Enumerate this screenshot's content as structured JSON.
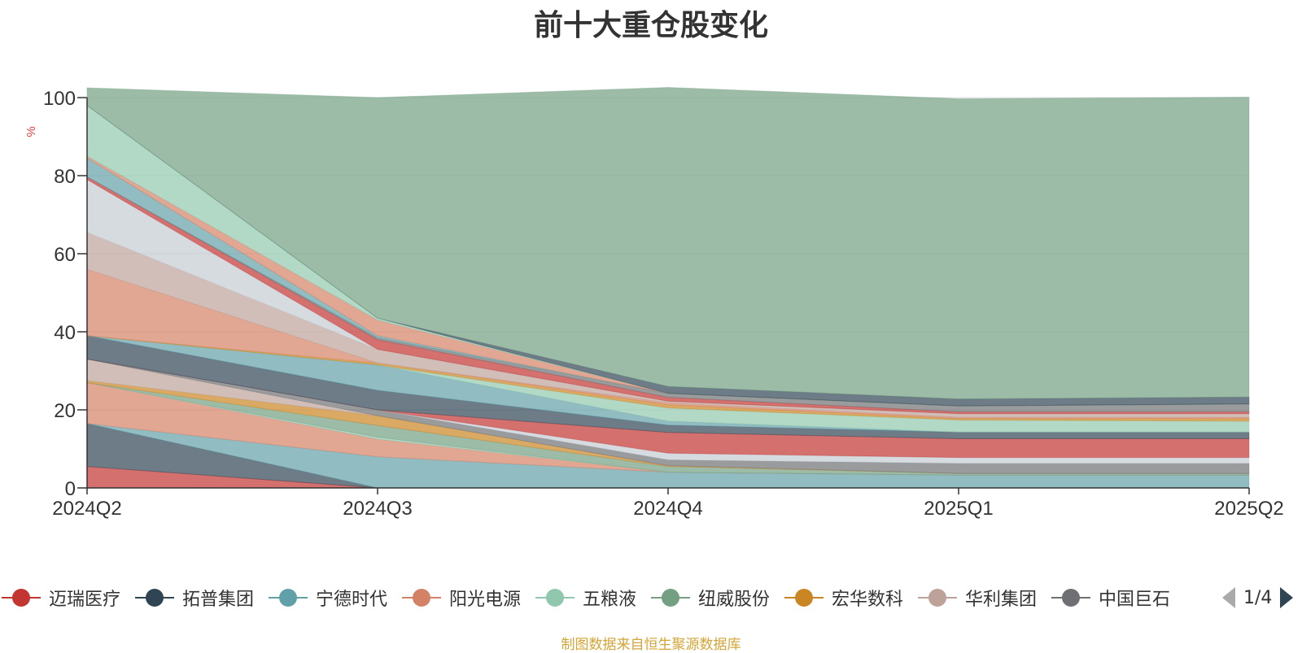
{
  "chart_data": {
    "type": "area",
    "title": "前十大重仓股变化",
    "ylabel": "%",
    "ylim": [
      0,
      100
    ],
    "yticks": [
      0,
      20,
      40,
      60,
      80,
      100
    ],
    "categories": [
      "2024Q2",
      "2024Q3",
      "2024Q4",
      "2025Q1",
      "2025Q2"
    ],
    "grid": true,
    "stacked": true,
    "series": [
      {
        "name": "迈瑞医疗",
        "color": "#c23531",
        "values": [
          5.5,
          0,
          0,
          0,
          0
        ]
      },
      {
        "name": "拓普集团",
        "color": "#2f4554",
        "values": [
          11,
          0,
          0,
          0,
          0
        ]
      },
      {
        "name": "宁德时代",
        "color": "#61a0a8",
        "values": [
          0,
          8,
          4,
          3.3,
          3.3
        ]
      },
      {
        "name": "阳光电源",
        "color": "#d48265",
        "values": [
          10.5,
          4.5,
          0,
          0,
          0
        ]
      },
      {
        "name": "五粮液",
        "color": "#91c7ae",
        "values": [
          0,
          0.5,
          0,
          0,
          0
        ]
      },
      {
        "name": "纽威股份",
        "color": "#749f83",
        "values": [
          0,
          3,
          1.5,
          0.4,
          0.4
        ]
      },
      {
        "name": "宏华数科",
        "color": "#ca8622",
        "values": [
          0.5,
          2.5,
          0.2,
          0,
          0
        ]
      },
      {
        "name": "华利集团",
        "color": "#bda29a",
        "values": [
          5.5,
          0,
          0,
          0,
          0
        ]
      },
      {
        "name": "中国巨石",
        "color": "#6e7074",
        "values": [
          0,
          1.5,
          1.5,
          2.6,
          2.6
        ]
      },
      {
        "name": "",
        "color": "#c4ccd3",
        "values": [
          0,
          0,
          1.7,
          1.5,
          1.5
        ]
      },
      {
        "name": "",
        "color": "#c23531",
        "values": [
          0,
          0,
          5.3,
          4.8,
          4.8
        ]
      },
      {
        "name": "",
        "color": "#2f4554",
        "values": [
          6,
          5,
          1.9,
          1.7,
          1.7
        ]
      },
      {
        "name": "",
        "color": "#61a0a8",
        "values": [
          0,
          6.5,
          1,
          0,
          0
        ]
      },
      {
        "name": "",
        "color": "#91c7ae",
        "values": [
          0,
          0,
          3.4,
          3.1,
          2.8
        ]
      },
      {
        "name": "",
        "color": "#ca8622",
        "values": [
          0,
          0.5,
          0.8,
          0.4,
          0.7
        ]
      },
      {
        "name": "",
        "color": "#d48265",
        "values": [
          17,
          0,
          0.5,
          0.3,
          0.3
        ]
      },
      {
        "name": "",
        "color": "#bda29a",
        "values": [
          9.5,
          3.5,
          0.4,
          0.9,
          0.9
        ]
      },
      {
        "name": "",
        "color": "#c4ccd3",
        "values": [
          13.5,
          0,
          0,
          0,
          0
        ]
      },
      {
        "name": "",
        "color": "#c23531",
        "values": [
          0.7,
          2.5,
          1,
          0.5,
          0.5
        ]
      },
      {
        "name": "",
        "color": "#6e7074",
        "values": [
          0,
          0.5,
          1,
          1.5,
          2
        ]
      },
      {
        "name": "",
        "color": "#61a0a8",
        "values": [
          4.8,
          0.5,
          0,
          0,
          0
        ]
      },
      {
        "name": "",
        "color": "#d48265",
        "values": [
          0.5,
          4,
          0,
          0,
          0
        ]
      },
      {
        "name": "",
        "color": "#91c7ae",
        "values": [
          13,
          0.5,
          0,
          0,
          0
        ]
      },
      {
        "name": "",
        "color": "#2f4554",
        "values": [
          0,
          0,
          1.8,
          1.8,
          1.8
        ]
      },
      {
        "name": "",
        "color": "#749f83",
        "values": [
          4.5,
          56.5,
          76.6,
          76.9,
          76.8
        ]
      }
    ]
  },
  "legend": {
    "items": [
      "迈瑞医疗",
      "拓普集团",
      "宁德时代",
      "阳光电源",
      "五粮液",
      "纽威股份",
      "宏华数科",
      "华利集团",
      "中国巨石"
    ],
    "page_text": "1/4"
  },
  "source_note": "制图数据来自恒生聚源数据库"
}
